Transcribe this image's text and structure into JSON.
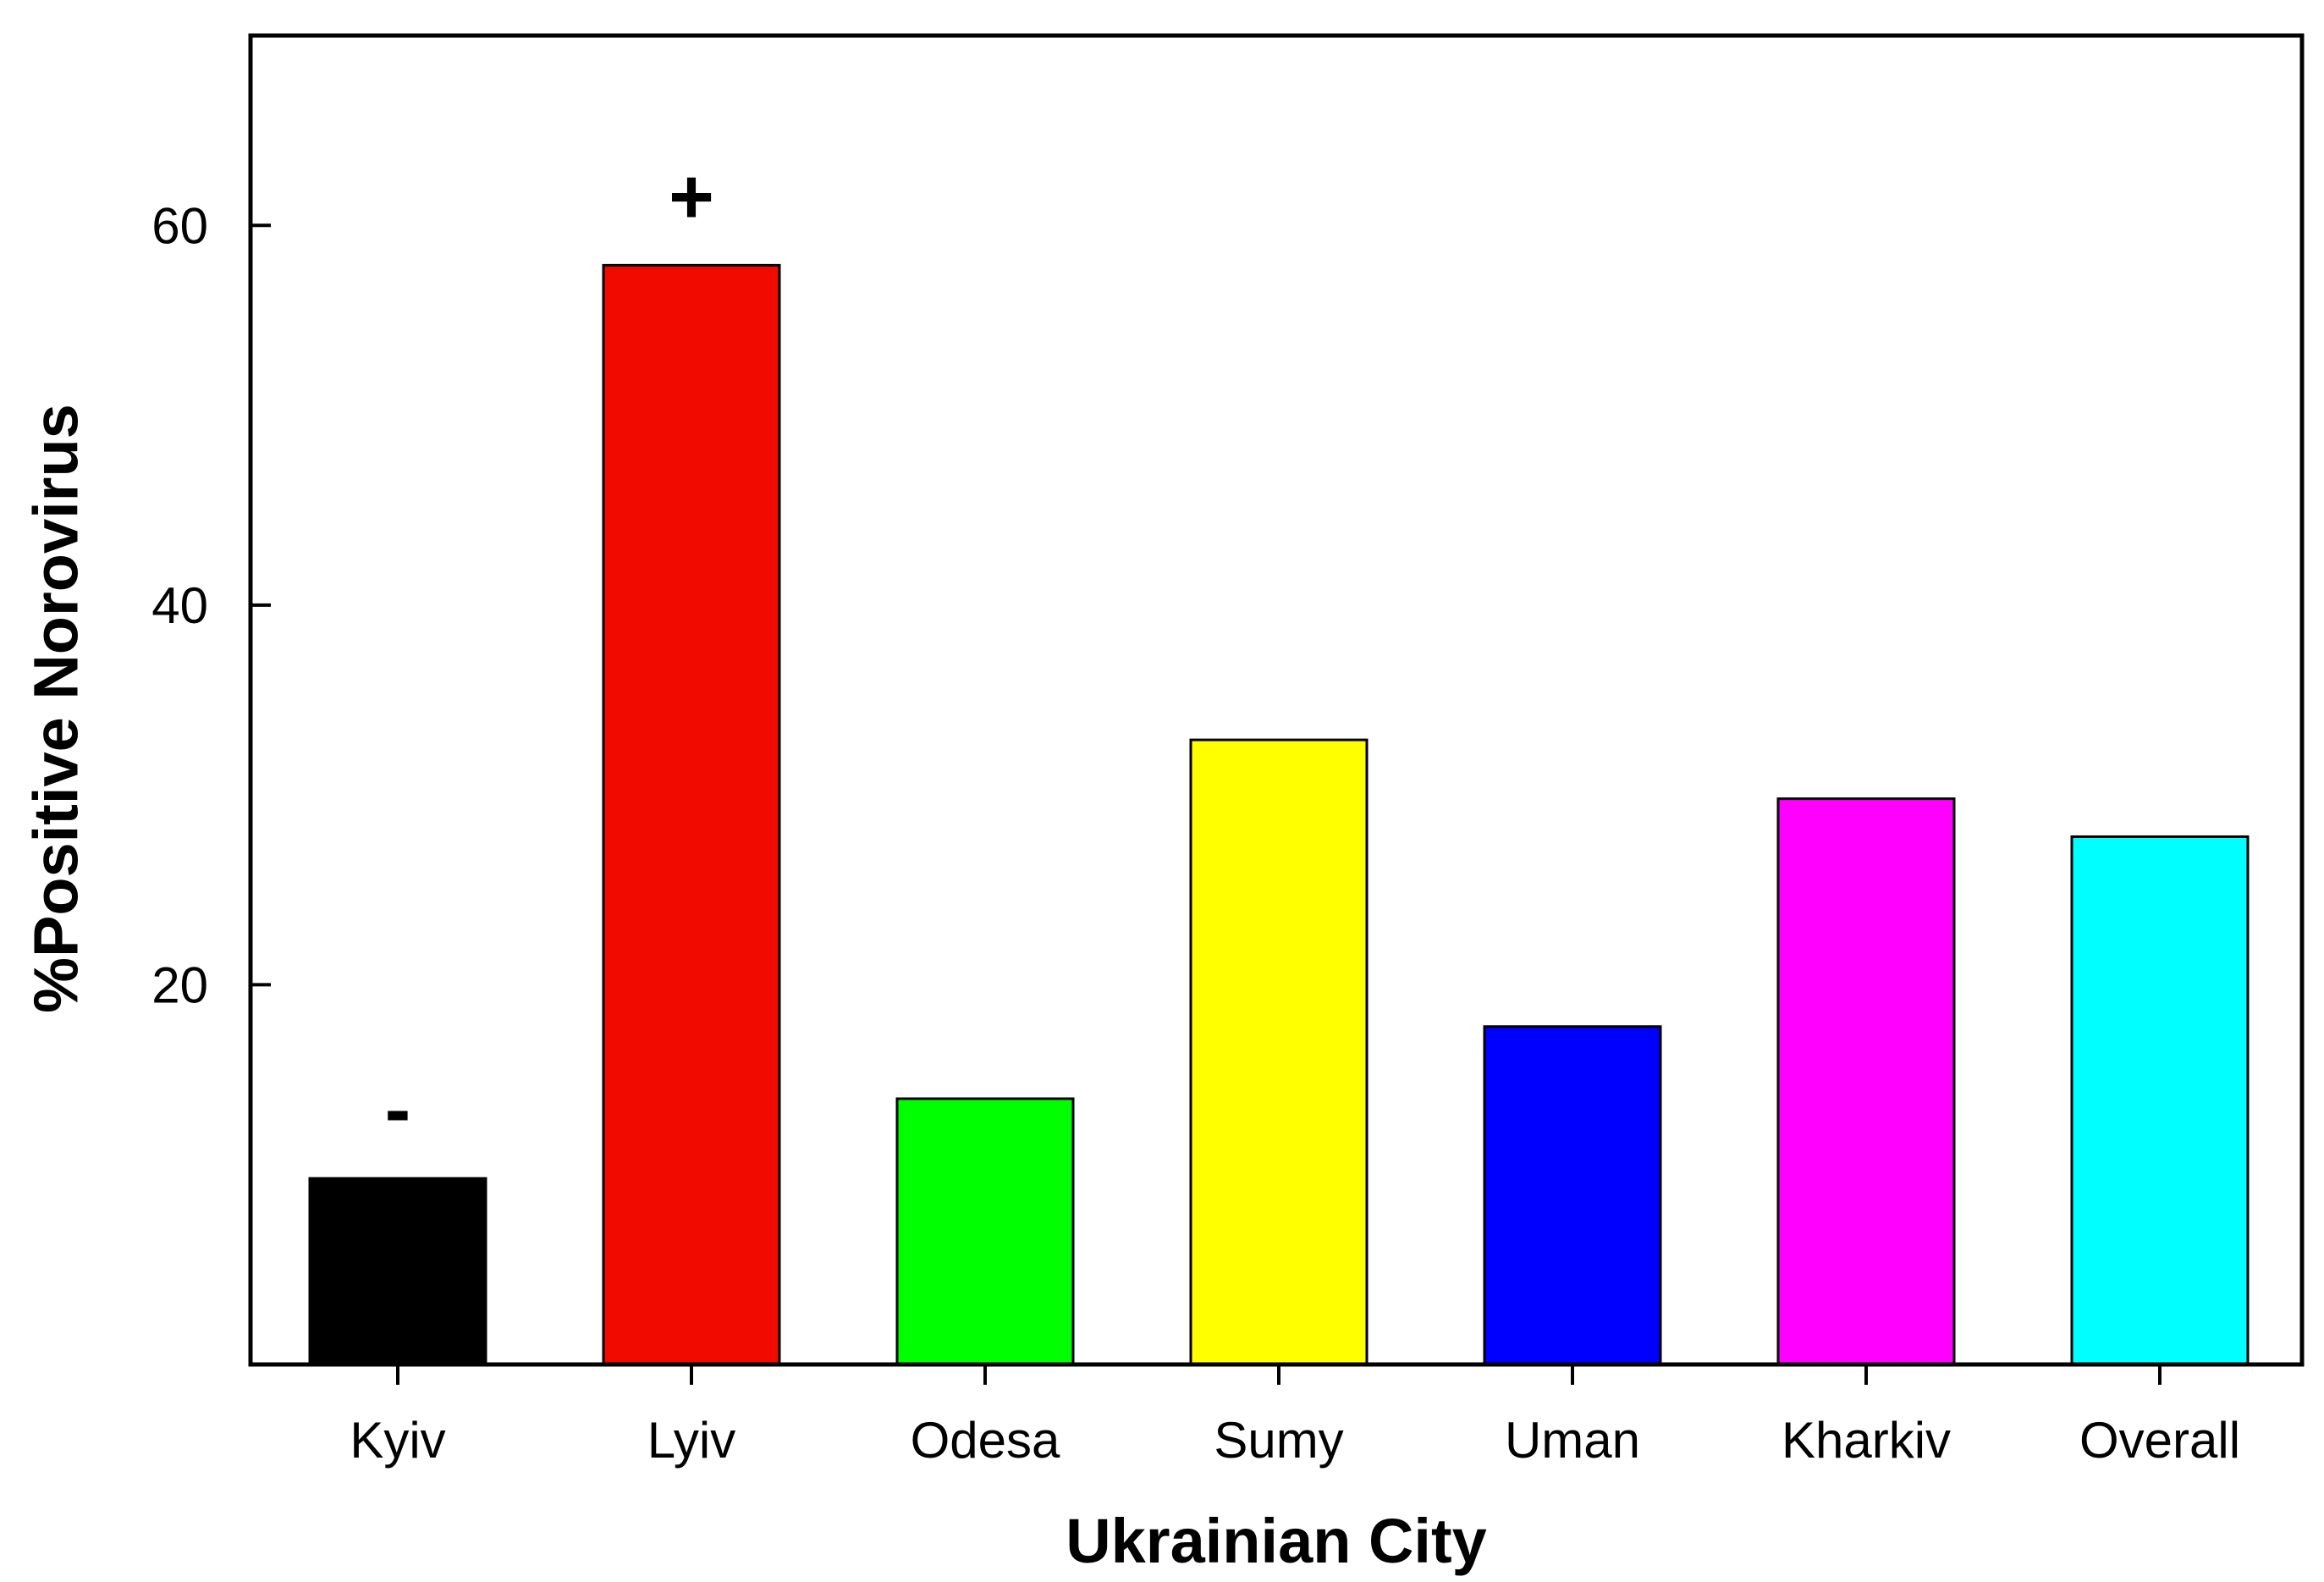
{
  "chart_data": {
    "type": "bar",
    "categories": [
      "Kyiv",
      "Lyiv",
      "Odesa",
      "Sumy",
      "Uman",
      "Kharkiv",
      "Overall"
    ],
    "values": [
      9.8,
      57.9,
      14.0,
      32.9,
      17.8,
      29.8,
      27.8
    ],
    "colors": [
      "#000000",
      "#f00a00",
      "#00ff00",
      "#ffff00",
      "#0000ff",
      "#ff00ff",
      "#00ffff"
    ],
    "annotations": [
      {
        "category": "Kyiv",
        "text": "-"
      },
      {
        "category": "Lyiv",
        "text": "+"
      }
    ],
    "title": "",
    "xlabel": "Ukrainian City",
    "ylabel": "%Positive Norovirus",
    "ylim": [
      0,
      70
    ],
    "yticks": [
      20,
      40,
      60
    ],
    "grid": false,
    "legend": "none"
  }
}
